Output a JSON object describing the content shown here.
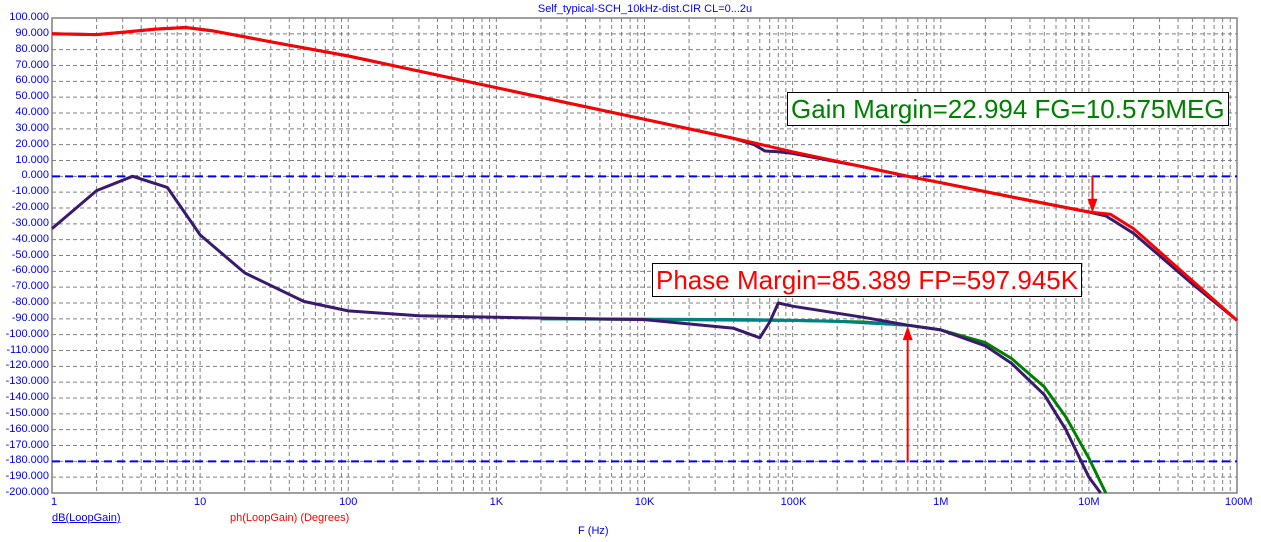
{
  "chart_data": {
    "type": "line",
    "title": "Self_typical-SCH_10kHz-dist.CIR CL=0...2u",
    "xlabel": "F (Hz)",
    "x_scale": "log",
    "xlim": [
      1,
      100000000
    ],
    "x_ticks": [
      {
        "v": 1,
        "label": "1"
      },
      {
        "v": 10,
        "label": "10"
      },
      {
        "v": 100,
        "label": "100"
      },
      {
        "v": 1000,
        "label": "1K"
      },
      {
        "v": 10000,
        "label": "10K"
      },
      {
        "v": 100000,
        "label": "100K"
      },
      {
        "v": 1000000,
        "label": "1M"
      },
      {
        "v": 10000000,
        "label": "10M"
      },
      {
        "v": 100000000,
        "label": "100M"
      }
    ],
    "ylim": [
      -200,
      100
    ],
    "y_tick_step": 10,
    "grid": true,
    "legend": [
      {
        "label": "dB(LoopGain)",
        "color": "#0000ff"
      },
      {
        "label": "ph(LoopGain) (Degrees)",
        "color": "#ff0000"
      }
    ],
    "reference_lines": [
      {
        "y": 0,
        "color": "#0000ff"
      },
      {
        "y": -180,
        "color": "#0000ff"
      }
    ],
    "series": [
      {
        "color": "#3a1a6e",
        "points": [
          [
            1,
            90
          ],
          [
            2,
            89.5
          ],
          [
            3,
            91
          ],
          [
            5,
            93
          ],
          [
            8,
            94
          ],
          [
            12,
            92
          ],
          [
            30,
            85
          ],
          [
            100,
            76
          ],
          [
            1000,
            56
          ],
          [
            10000,
            36
          ],
          [
            40000,
            24
          ],
          [
            55000,
            20
          ],
          [
            65000,
            16
          ],
          [
            80000,
            15.5
          ],
          [
            100000,
            14.5
          ],
          [
            300000,
            6
          ],
          [
            600000,
            0
          ],
          [
            1000000,
            -4
          ],
          [
            3000000,
            -13
          ],
          [
            10000000,
            -22.5
          ],
          [
            13000000,
            -25
          ],
          [
            20000000,
            -36
          ],
          [
            50000000,
            -68
          ],
          [
            100000000,
            -91
          ]
        ]
      },
      {
        "color": "#ff0000",
        "points": [
          [
            1,
            90
          ],
          [
            2,
            89.5
          ],
          [
            3,
            91
          ],
          [
            5,
            93
          ],
          [
            8,
            94
          ],
          [
            12,
            92
          ],
          [
            30,
            85
          ],
          [
            100,
            76
          ],
          [
            1000,
            56
          ],
          [
            10000,
            36
          ],
          [
            50000,
            22
          ],
          [
            100000,
            15.5
          ],
          [
            300000,
            6
          ],
          [
            600000,
            0
          ],
          [
            1000000,
            -4
          ],
          [
            3000000,
            -13
          ],
          [
            10000000,
            -22.5
          ],
          [
            14000000,
            -24
          ],
          [
            20000000,
            -33
          ],
          [
            50000000,
            -66
          ],
          [
            100000000,
            -91
          ]
        ]
      },
      {
        "color": "#008000",
        "points": [
          [
            2000,
            -90
          ],
          [
            100000,
            -91
          ],
          [
            300000,
            -92
          ],
          [
            600000,
            -94
          ],
          [
            1000000,
            -97
          ],
          [
            2000000,
            -105
          ],
          [
            3000000,
            -115
          ],
          [
            5000000,
            -133
          ],
          [
            7000000,
            -152
          ],
          [
            10000000,
            -178
          ],
          [
            13000000,
            -200
          ]
        ]
      },
      {
        "color": "#008080",
        "points": [
          [
            2000,
            -90
          ],
          [
            50000,
            -90.5
          ],
          [
            200000,
            -91.5
          ],
          [
            600000,
            -94
          ]
        ]
      },
      {
        "color": "#3a1a6e",
        "points": [
          [
            1,
            -33
          ],
          [
            2,
            -9
          ],
          [
            3.5,
            0
          ],
          [
            6,
            -7
          ],
          [
            10,
            -37
          ],
          [
            20,
            -61
          ],
          [
            50,
            -79
          ],
          [
            100,
            -85
          ],
          [
            300,
            -88
          ],
          [
            1000,
            -89
          ],
          [
            10000,
            -90.5
          ],
          [
            40000,
            -96
          ],
          [
            60000,
            -102
          ],
          [
            70000,
            -92
          ],
          [
            80000,
            -80
          ],
          [
            100000,
            -82
          ],
          [
            300000,
            -89
          ],
          [
            600000,
            -94
          ],
          [
            1000000,
            -97
          ],
          [
            2000000,
            -107
          ],
          [
            3000000,
            -118
          ],
          [
            5000000,
            -138
          ],
          [
            7000000,
            -160
          ],
          [
            10000000,
            -190
          ],
          [
            12000000,
            -200
          ]
        ]
      }
    ],
    "annotations": [
      {
        "text": "Gain Margin=22.994 FG=10.575MEG",
        "color": "#008000",
        "x": 10575000,
        "y_from": 0,
        "y_to": -22.994
      },
      {
        "text": "Phase Margin=85.389 FP=597.945K",
        "color": "#ff0000",
        "x": 597945,
        "y_from": -180,
        "y_to": -94.611
      }
    ]
  }
}
